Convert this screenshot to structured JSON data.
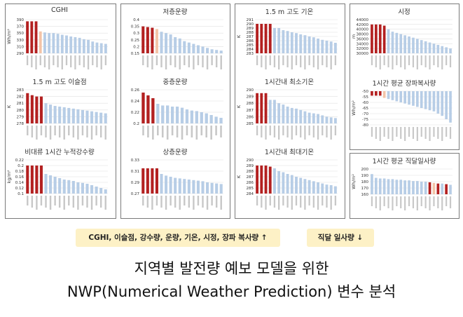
{
  "colors": {
    "highlight": "#b32020",
    "bar": "#b7cde6",
    "peach": "#f3c4a8",
    "grid": "#e0e0e0",
    "text": "#333333"
  },
  "legend": {
    "increase": "CGHI, 이슬점, 강수량, 운량, 기온, 시정, 장파 복사량 ↑",
    "decrease": "직달 일사량 ↓"
  },
  "caption": {
    "line1": "지역별 발전량 예보 모델을 위한",
    "line2": "NWP(Numerical Weather Prediction) 변수 분석"
  },
  "chart_data": [
    {
      "id": "cghi",
      "type": "bar",
      "title": "CGHI",
      "ylabel": "Wh/m²",
      "yticks": [
        "390",
        "370",
        "350",
        "330",
        "310",
        "290"
      ],
      "ylim": [
        290,
        390
      ],
      "values": [
        385,
        385,
        385,
        355,
        352,
        350,
        350,
        348,
        345,
        343,
        340,
        338,
        336,
        332,
        330,
        325,
        322,
        320,
        318
      ],
      "colors": [
        "r",
        "r",
        "r",
        "p",
        "b",
        "b",
        "b",
        "b",
        "b",
        "b",
        "b",
        "b",
        "b",
        "b",
        "b",
        "b",
        "b",
        "b",
        "b"
      ]
    },
    {
      "id": "low_cloud",
      "type": "bar",
      "title": "저층운량",
      "ylabel": "",
      "yticks": [
        "0.4",
        "0.35",
        "0.3",
        "0.25",
        "0.2",
        "0.15"
      ],
      "ylim": [
        0.15,
        0.4
      ],
      "values": [
        0.35,
        0.345,
        0.34,
        0.33,
        0.31,
        0.3,
        0.29,
        0.27,
        0.26,
        0.24,
        0.23,
        0.22,
        0.21,
        0.2,
        0.19,
        0.18,
        0.175,
        0.17
      ],
      "colors": [
        "r",
        "r",
        "r",
        "p",
        "b",
        "b",
        "b",
        "b",
        "b",
        "b",
        "b",
        "b",
        "b",
        "b",
        "b",
        "b",
        "b",
        "b"
      ]
    },
    {
      "id": "temp_15m",
      "type": "bar",
      "title": "1.5 m 고도 기온",
      "ylabel": "K",
      "yticks": [
        "291",
        "290",
        "289",
        "288",
        "287",
        "286",
        "285",
        "284",
        "283"
      ],
      "ylim": [
        283,
        291
      ],
      "values": [
        290,
        290,
        290,
        290,
        289,
        289,
        288.5,
        288.3,
        288,
        287.8,
        287.5,
        287.3,
        287,
        286.8,
        286.5,
        286.2,
        286,
        285.8,
        285.5
      ],
      "colors": [
        "r",
        "r",
        "r",
        "r",
        "b",
        "b",
        "b",
        "b",
        "b",
        "b",
        "b",
        "b",
        "b",
        "b",
        "b",
        "b",
        "b",
        "b",
        "b"
      ]
    },
    {
      "id": "visibility",
      "type": "bar",
      "title": "시정",
      "ylabel": "m",
      "yticks": [
        "44000",
        "42000",
        "40000",
        "38000",
        "36000",
        "34000",
        "32000",
        "30000"
      ],
      "ylim": [
        30000,
        44000
      ],
      "values": [
        42000,
        42000,
        42000,
        41500,
        40000,
        39000,
        38500,
        38000,
        37500,
        37000,
        36500,
        36000,
        35500,
        35000,
        34500,
        34000,
        33500,
        33000,
        32500,
        32000
      ],
      "colors": [
        "r",
        "r",
        "r",
        "r",
        "b",
        "b",
        "b",
        "b",
        "b",
        "b",
        "b",
        "b",
        "b",
        "b",
        "b",
        "b",
        "b",
        "b",
        "b",
        "b"
      ]
    },
    {
      "id": "dewpoint",
      "type": "bar",
      "title": "1.5 m 고도 이슬점",
      "ylabel": "K",
      "yticks": [
        "283",
        "282",
        "281",
        "280",
        "279",
        "278"
      ],
      "ylim": [
        278,
        283
      ],
      "values": [
        282.5,
        282.2,
        282,
        282,
        281,
        280.8,
        280.6,
        280.5,
        280.4,
        280.3,
        280.2,
        280.1,
        280,
        279.9,
        279.8,
        279.7,
        279.6,
        279.5
      ],
      "colors": [
        "r",
        "r",
        "r",
        "r",
        "b",
        "b",
        "b",
        "b",
        "b",
        "b",
        "b",
        "b",
        "b",
        "b",
        "b",
        "b",
        "b",
        "b"
      ]
    },
    {
      "id": "mid_cloud",
      "type": "bar",
      "title": "중층운량",
      "ylabel": "",
      "yticks": [
        "0.26",
        "0.24",
        "0.22",
        "0.2"
      ],
      "ylim": [
        0.2,
        0.26
      ],
      "values": [
        0.255,
        0.25,
        0.245,
        0.235,
        0.232,
        0.232,
        0.23,
        0.23,
        0.228,
        0.225,
        0.223,
        0.222,
        0.22,
        0.218,
        0.215,
        0.212,
        0.21
      ],
      "colors": [
        "r",
        "r",
        "r",
        "b",
        "b",
        "b",
        "b",
        "b",
        "b",
        "b",
        "b",
        "b",
        "b",
        "b",
        "b",
        "b",
        "b"
      ]
    },
    {
      "id": "min_temp",
      "type": "bar",
      "title": "1시간내 최소기온",
      "ylabel": "K",
      "yticks": [
        "290",
        "289",
        "288",
        "287",
        "286",
        "285"
      ],
      "ylim": [
        285,
        290
      ],
      "values": [
        289.5,
        289.5,
        289.5,
        288.5,
        288.5,
        288,
        287.8,
        287.5,
        287.3,
        287.2,
        287,
        286.8,
        286.6,
        286.5,
        286.4,
        286.2,
        286,
        285.9,
        285.8
      ],
      "colors": [
        "r",
        "r",
        "r",
        "b",
        "b",
        "b",
        "b",
        "b",
        "b",
        "b",
        "b",
        "b",
        "b",
        "b",
        "b",
        "b",
        "b",
        "b",
        "b"
      ]
    },
    {
      "id": "longwave",
      "type": "bar",
      "title": "1시간 평균 장파복사량",
      "ylabel": "Wh/m²",
      "yticks": [
        "-50",
        "-55",
        "-60",
        "-65",
        "-70",
        "-75",
        "-80"
      ],
      "ylim": [
        -80,
        -50
      ],
      "baseline": -50,
      "values": [
        -54,
        -54,
        -54,
        -56,
        -57,
        -58,
        -59,
        -60,
        -61,
        -62,
        -63,
        -64,
        -65,
        -66,
        -67,
        -68,
        -70,
        -72,
        -75,
        -78
      ],
      "colors": [
        "r",
        "r",
        "r",
        "p",
        "b",
        "b",
        "b",
        "b",
        "b",
        "b",
        "b",
        "b",
        "b",
        "b",
        "b",
        "b",
        "b",
        "b",
        "b",
        "b"
      ]
    },
    {
      "id": "precip",
      "type": "bar",
      "title": "비대류 1시간 누적강수량",
      "ylabel": "kg/m²",
      "yticks": [
        "0.22",
        "0.2",
        "0.18",
        "0.16",
        "0.14",
        "0.12",
        "0.1"
      ],
      "ylim": [
        0.1,
        0.22
      ],
      "values": [
        0.2,
        0.2,
        0.2,
        0.2,
        0.17,
        0.165,
        0.16,
        0.155,
        0.15,
        0.148,
        0.145,
        0.14,
        0.138,
        0.135,
        0.13,
        0.125,
        0.12,
        0.115
      ],
      "colors": [
        "r",
        "r",
        "r",
        "r",
        "b",
        "b",
        "b",
        "b",
        "b",
        "b",
        "b",
        "b",
        "b",
        "b",
        "b",
        "b",
        "b",
        "b"
      ]
    },
    {
      "id": "high_cloud",
      "type": "bar",
      "title": "상층운량",
      "ylabel": "",
      "yticks": [
        "0.33",
        "0.31",
        "0.29",
        "0.27"
      ],
      "ylim": [
        0.27,
        0.33
      ],
      "values": [
        0.315,
        0.315,
        0.315,
        0.315,
        0.305,
        0.302,
        0.3,
        0.298,
        0.297,
        0.296,
        0.295,
        0.294,
        0.293,
        0.292,
        0.29,
        0.289,
        0.288,
        0.287
      ],
      "colors": [
        "r",
        "r",
        "r",
        "r",
        "b",
        "b",
        "b",
        "b",
        "b",
        "b",
        "b",
        "b",
        "b",
        "b",
        "b",
        "b",
        "b",
        "b"
      ]
    },
    {
      "id": "max_temp",
      "type": "bar",
      "title": "1시간내 최대기온",
      "ylabel": "K",
      "yticks": [
        "290",
        "289",
        "288",
        "287",
        "286",
        "285",
        "284"
      ],
      "ylim": [
        284,
        290
      ],
      "values": [
        289,
        289,
        289,
        288.8,
        288.5,
        288,
        287.8,
        287.5,
        287.3,
        287,
        286.8,
        286.6,
        286.4,
        286.2,
        286,
        285.8,
        285.6,
        285.5,
        285.3
      ],
      "colors": [
        "r",
        "r",
        "r",
        "r",
        "b",
        "b",
        "b",
        "b",
        "b",
        "b",
        "b",
        "b",
        "b",
        "b",
        "b",
        "b",
        "b",
        "b",
        "b"
      ]
    },
    {
      "id": "direct",
      "type": "bar",
      "title": "1시간 평균 직달일사량",
      "ylabel": "Wh/m²",
      "yticks": [
        "200",
        "190",
        "180",
        "170",
        "160"
      ],
      "ylim": [
        160,
        200
      ],
      "values": [
        192,
        186,
        185,
        185,
        184,
        184,
        183,
        183,
        182,
        182,
        181,
        181,
        180,
        180,
        179,
        178,
        177,
        177,
        176,
        175
      ],
      "colors": [
        "b",
        "b",
        "b",
        "b",
        "b",
        "b",
        "b",
        "b",
        "b",
        "b",
        "b",
        "b",
        "b",
        "b",
        "r",
        "p",
        "r",
        "b",
        "r",
        "b"
      ]
    }
  ]
}
